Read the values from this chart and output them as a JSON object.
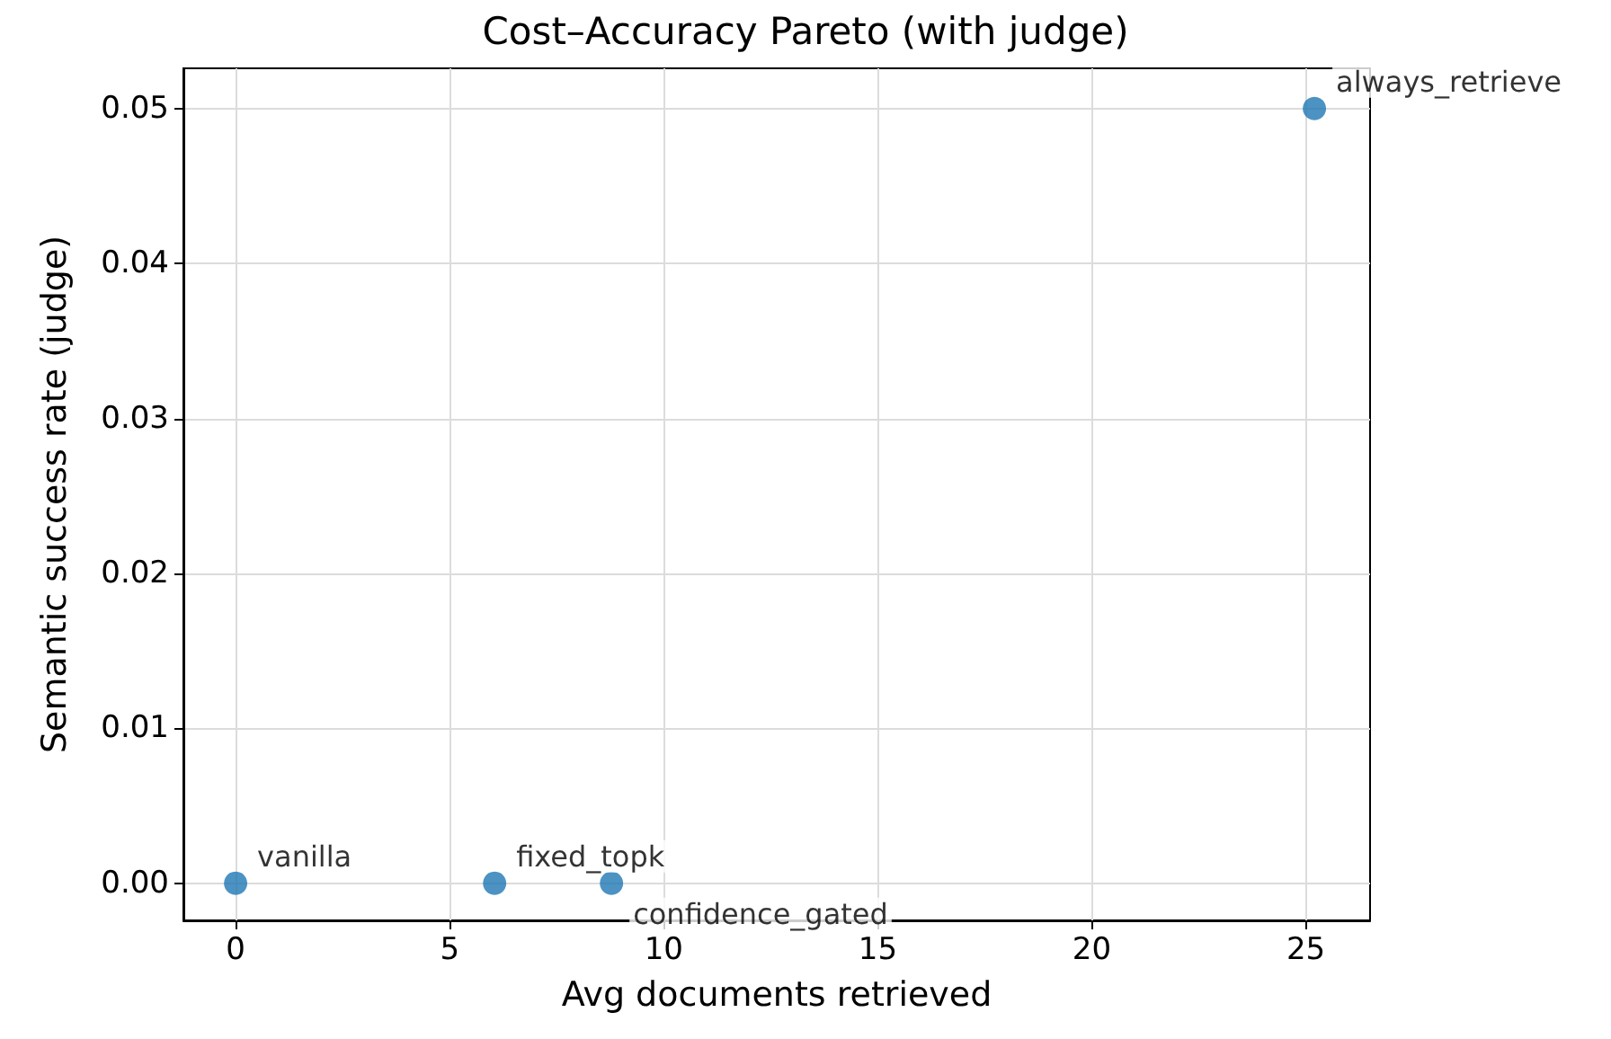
{
  "chart_data": {
    "type": "scatter",
    "title": "Cost–Accuracy Pareto (with judge)",
    "xlabel": "Avg documents retrieved",
    "ylabel": "Semantic success rate (judge)",
    "x": [
      0,
      6.05,
      8.78,
      25.2
    ],
    "series": [
      {
        "color": "#1f77b4",
        "values": [
          0,
          0,
          0,
          0.05
        ]
      }
    ],
    "annotations": [
      {
        "text": "vanilla",
        "x": 0,
        "y": 0
      },
      {
        "text": "fixed_topk",
        "x": 6.05,
        "y": 0
      },
      {
        "text": "confidence_gated",
        "x": 8.78,
        "y": 0
      },
      {
        "text": "always_retrieve",
        "x": 25.2,
        "y": 0.05
      }
    ],
    "xlim": [
      -1.22,
      26.5
    ],
    "xticks": [
      0,
      5,
      10,
      15,
      20,
      25
    ],
    "ylim": [
      -0.0024,
      0.0526
    ],
    "yticks": [
      {
        "value": 0,
        "label": "0.00"
      },
      {
        "value": 0.01,
        "label": "0.01"
      },
      {
        "value": 0.02,
        "label": "0.02"
      },
      {
        "value": 0.03,
        "label": "0.03"
      },
      {
        "value": 0.04,
        "label": "0.04"
      },
      {
        "value": 0.05,
        "label": "0.05"
      }
    ],
    "grid": true,
    "marker": "circle"
  }
}
